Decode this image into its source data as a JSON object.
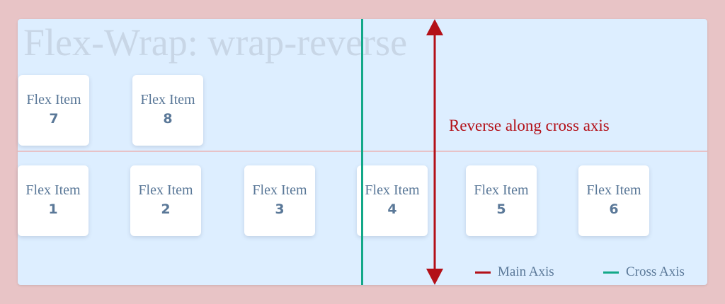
{
  "title": "Flex-Wrap: wrap-reverse",
  "annotation": "Reverse along cross axis",
  "item_label": "Flex Item",
  "items_row_top": [
    {
      "label": "Flex Item",
      "number": "7"
    },
    {
      "label": "Flex Item",
      "number": "8"
    }
  ],
  "items_row_bottom": [
    {
      "label": "Flex Item",
      "number": "1"
    },
    {
      "label": "Flex Item",
      "number": "2"
    },
    {
      "label": "Flex Item",
      "number": "3"
    },
    {
      "label": "Flex Item",
      "number": "4"
    },
    {
      "label": "Flex Item",
      "number": "5"
    },
    {
      "label": "Flex Item",
      "number": "6"
    }
  ],
  "legend": {
    "main_axis": "Main Axis",
    "cross_axis": "Cross Axis"
  },
  "colors": {
    "background": "#e8c4c6",
    "panel": "#ddeeff",
    "main_axis": "#b31018",
    "cross_axis": "#13a888",
    "item_text": "#5a7898"
  }
}
